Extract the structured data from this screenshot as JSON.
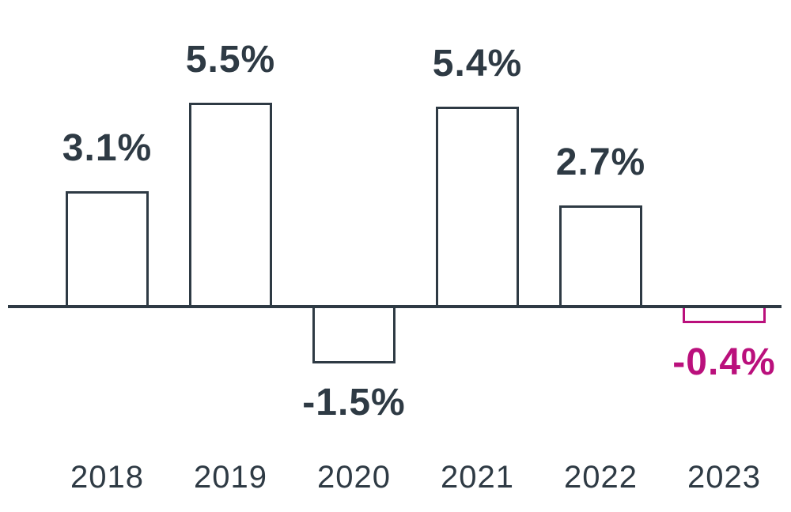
{
  "chart_data": {
    "type": "bar",
    "categories": [
      "2018",
      "2019",
      "2020",
      "2021",
      "2022",
      "2023"
    ],
    "values": [
      3.1,
      5.5,
      -1.5,
      5.4,
      2.7,
      -0.4
    ],
    "value_labels": [
      "3.1%",
      "5.5%",
      "-1.5%",
      "5.4%",
      "2.7%",
      "-0.4%"
    ],
    "title": "",
    "xlabel": "",
    "ylabel": "",
    "ylim": [
      -2,
      6
    ],
    "grid": false,
    "legend": "none",
    "bar_style": "outlined",
    "highlight_index": 5,
    "colors": {
      "bar_outline": "#2e3a44",
      "bar_fill": "#ffffff",
      "highlight_outline": "#ba107c",
      "value_label": "#2e3a44",
      "highlight_value_label": "#ba107c",
      "axis_line": "#2e3a44",
      "tick_label": "#2e3a44",
      "background": "#ffffff"
    }
  }
}
